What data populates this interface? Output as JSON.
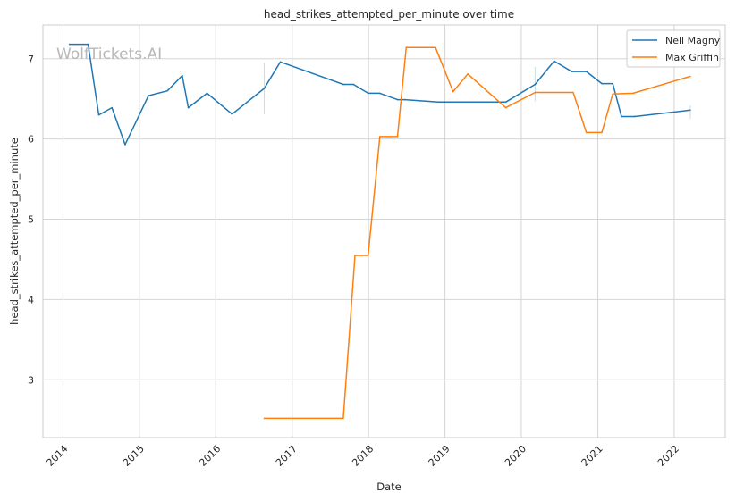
{
  "watermark": "WolfTickets.AI",
  "chart_data": {
    "type": "line",
    "title": "head_strikes_attempted_per_minute over time",
    "xlabel": "Date",
    "ylabel": "head_strikes_attempted_per_minute",
    "x_ticks": [
      "2014",
      "2015",
      "2016",
      "2017",
      "2018",
      "2019",
      "2020",
      "2021",
      "2022"
    ],
    "y_ticks": [
      3,
      4,
      5,
      6,
      7
    ],
    "xlim": [
      "2013-09-27",
      "2022-09-02"
    ],
    "ylim": [
      2.28,
      7.42
    ],
    "grid": true,
    "legend_position": "top-right",
    "series": [
      {
        "name": "Neil Magny",
        "color": "#1f77b4",
        "points": [
          [
            "2014-02-01",
            7.18
          ],
          [
            "2014-05-01",
            7.18
          ],
          [
            "2014-06-21",
            6.3
          ],
          [
            "2014-08-23",
            6.39
          ],
          [
            "2014-10-25",
            5.93
          ],
          [
            "2015-02-14",
            6.54
          ],
          [
            "2015-05-15",
            6.6
          ],
          [
            "2015-07-25",
            6.79
          ],
          [
            "2015-08-23",
            6.39
          ],
          [
            "2015-11-21",
            6.57
          ],
          [
            "2016-03-19",
            6.31
          ],
          [
            "2016-08-20",
            6.63
          ],
          [
            "2016-11-05",
            6.96
          ],
          [
            "2017-09-02",
            6.68
          ],
          [
            "2017-10-21",
            6.68
          ],
          [
            "2017-12-30",
            6.57
          ],
          [
            "2018-02-24",
            6.57
          ],
          [
            "2018-05-19",
            6.49
          ],
          [
            "2018-06-23",
            6.49
          ],
          [
            "2018-12-01",
            6.46
          ],
          [
            "2019-10-19",
            6.46
          ],
          [
            "2020-03-07",
            6.68
          ],
          [
            "2020-06-06",
            6.97
          ],
          [
            "2020-08-29",
            6.84
          ],
          [
            "2020-11-07",
            6.84
          ],
          [
            "2021-01-20",
            6.69
          ],
          [
            "2021-03-13",
            6.69
          ],
          [
            "2021-04-24",
            6.28
          ],
          [
            "2021-06-26",
            6.28
          ],
          [
            "2022-03-19",
            6.36
          ]
        ]
      },
      {
        "name": "Max Griffin",
        "color": "#ff7f0e",
        "points": [
          [
            "2016-08-20",
            2.52
          ],
          [
            "2017-09-02",
            2.52
          ],
          [
            "2017-10-28",
            4.55
          ],
          [
            "2017-12-30",
            4.55
          ],
          [
            "2018-02-24",
            6.03
          ],
          [
            "2018-05-19",
            6.03
          ],
          [
            "2018-06-30",
            7.14
          ],
          [
            "2018-11-17",
            7.14
          ],
          [
            "2019-02-09",
            6.59
          ],
          [
            "2019-04-20",
            6.81
          ],
          [
            "2019-10-19",
            6.39
          ],
          [
            "2020-03-07",
            6.58
          ],
          [
            "2020-09-05",
            6.58
          ],
          [
            "2020-11-07",
            6.08
          ],
          [
            "2021-01-20",
            6.08
          ],
          [
            "2021-03-13",
            6.56
          ],
          [
            "2021-06-19",
            6.57
          ],
          [
            "2022-03-19",
            6.78
          ]
        ]
      }
    ],
    "faint_markers": [
      {
        "series": 0,
        "date": "2016-08-20",
        "y_low": 6.31,
        "y_high": 6.95
      },
      {
        "series": 0,
        "date": "2020-03-07",
        "y_low": 6.47,
        "y_high": 6.9
      },
      {
        "series": 0,
        "date": "2022-03-19",
        "y_low": 6.25,
        "y_high": 6.42
      }
    ]
  }
}
